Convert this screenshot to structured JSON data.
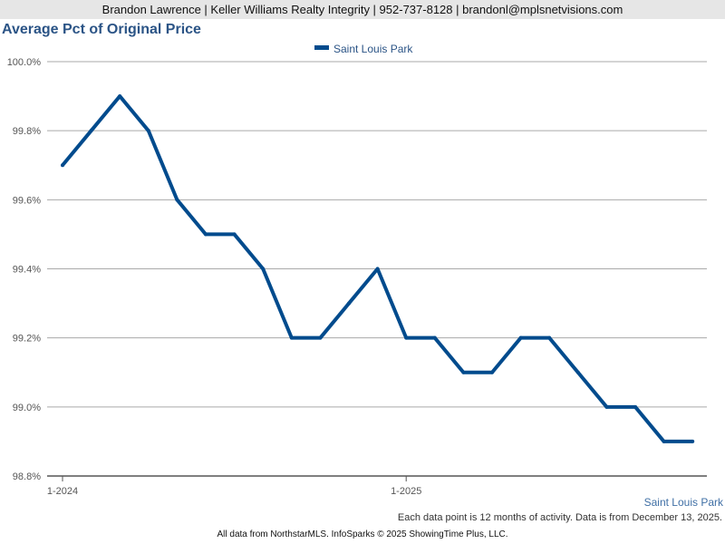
{
  "header": {
    "text": "Brandon Lawrence | Keller Williams Realty Integrity | 952-737-8128 | brandonl@mplsnetvisions.com"
  },
  "footer": {
    "source_label": "Saint Louis Park",
    "note": "Each data point is 12 months of activity. Data is from December 13, 2025.",
    "credits": "All data from NorthstarMLS. InfoSparks © 2025 ShowingTime Plus, LLC."
  },
  "chart_data": {
    "type": "line",
    "title": "Average Pct of Original Price",
    "xlabel": "",
    "ylabel": "",
    "x": [
      "1-2024",
      "2-2024",
      "3-2024",
      "4-2024",
      "5-2024",
      "6-2024",
      "7-2024",
      "8-2024",
      "9-2024",
      "10-2024",
      "11-2024",
      "12-2024",
      "1-2025",
      "2-2025",
      "3-2025",
      "4-2025",
      "5-2025",
      "6-2025",
      "7-2025",
      "8-2025",
      "9-2025",
      "10-2025",
      "11-2025"
    ],
    "x_tick_labels": [
      "1-2024",
      "1-2025"
    ],
    "y_tick_labels": [
      "98.8%",
      "99.0%",
      "99.2%",
      "99.4%",
      "99.6%",
      "99.8%",
      "100.0%"
    ],
    "ylim": [
      98.8,
      100.0
    ],
    "grid": true,
    "legend_position": "top-center",
    "series": [
      {
        "name": "Saint Louis Park",
        "color": "#004b8d",
        "values": [
          99.7,
          99.8,
          99.9,
          99.8,
          99.6,
          99.5,
          99.5,
          99.4,
          99.2,
          99.2,
          99.3,
          99.4,
          99.2,
          99.2,
          99.1,
          99.1,
          99.2,
          99.2,
          99.1,
          99.0,
          99.0,
          98.9,
          98.9
        ]
      }
    ]
  }
}
